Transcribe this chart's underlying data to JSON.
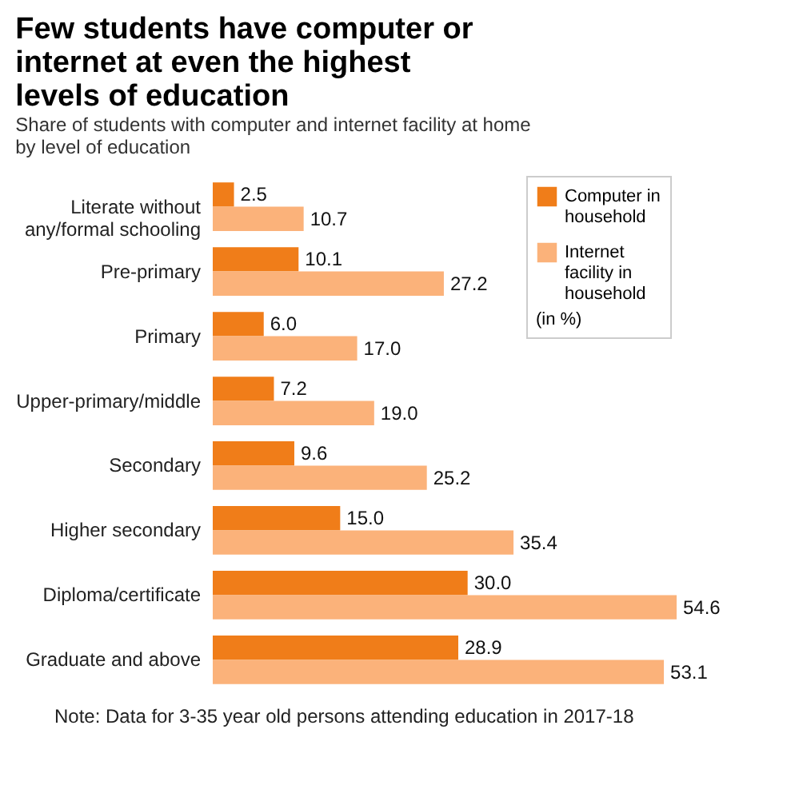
{
  "chart_data": {
    "type": "bar",
    "orientation": "horizontal",
    "title": "Few students have computer or internet at even the highest levels of education",
    "subtitle": "Share of students with computer and internet facility at home by level of education",
    "categories": [
      "Literate without any/formal schooling",
      "Pre-primary",
      "Primary",
      "Upper-primary/middle",
      "Secondary",
      "Higher secondary",
      "Diploma/certificate",
      "Graduate and above"
    ],
    "series": [
      {
        "name": "Computer in household",
        "color": "#f07d19",
        "values": [
          2.5,
          10.1,
          6.0,
          7.2,
          9.6,
          15.0,
          30.0,
          28.9
        ],
        "value_labels": [
          "2.5",
          "10.1",
          "6.0",
          "7.2",
          "9.6",
          "15.0",
          "30.0",
          "28.9"
        ]
      },
      {
        "name": "Internet facility in household",
        "color": "#fbb27a",
        "values": [
          10.7,
          27.2,
          17.0,
          19.0,
          25.2,
          35.4,
          54.6,
          53.1
        ],
        "value_labels": [
          "10.7",
          "27.2",
          "17.0",
          "19.0",
          "25.2",
          "35.4",
          "54.6",
          "53.1"
        ]
      }
    ],
    "legend": "top right",
    "legend_title": "(in %)",
    "annotations": [
      "Note: Data for 3-35 year old persons attending education in 2017-18"
    ]
  }
}
